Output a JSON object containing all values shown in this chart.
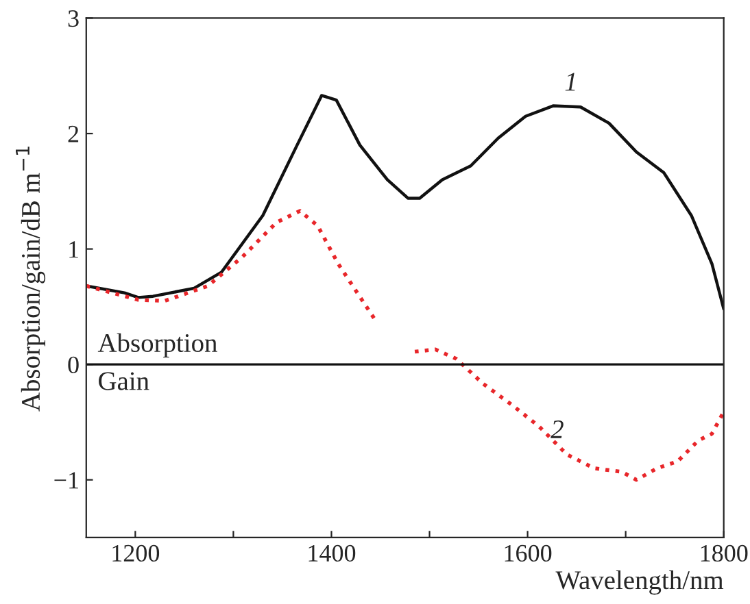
{
  "chart_data": {
    "type": "line",
    "xlabel": "Wavelength/nm",
    "ylabel": "Absorption/gain/dB m$^{−1}$",
    "xlim": [
      1150,
      1800
    ],
    "ylim": [
      -1.5,
      3
    ],
    "xticks": [
      {
        "value": 1200,
        "label": "1200"
      },
      {
        "value": 1300,
        "label": null
      },
      {
        "value": 1400,
        "label": "1400"
      },
      {
        "value": 1500,
        "label": null
      },
      {
        "value": 1600,
        "label": "1600"
      },
      {
        "value": 1700,
        "label": null
      },
      {
        "value": 1800,
        "label": "1800"
      }
    ],
    "yticks": [
      {
        "value": -1,
        "label": "−1"
      },
      0,
      1,
      2,
      3
    ],
    "grid": false,
    "legend": false,
    "series": [
      {
        "color": "#111111",
        "line_style": "solid",
        "x": [
          1150,
          1189,
          1203,
          1218,
          1260,
          1288,
          1330,
          1365,
          1390,
          1405,
          1429,
          1457,
          1478,
          1490,
          1513,
          1542,
          1570,
          1598,
          1626,
          1654,
          1683,
          1711,
          1739,
          1767,
          1788,
          1800
        ],
        "values": [
          0.68,
          0.62,
          0.58,
          0.59,
          0.66,
          0.8,
          1.29,
          1.9,
          2.33,
          2.29,
          1.9,
          1.6,
          1.44,
          1.44,
          1.6,
          1.72,
          1.96,
          2.15,
          2.24,
          2.23,
          2.09,
          1.84,
          1.66,
          1.29,
          0.87,
          0.48
        ]
      },
      {
        "color": "#e8262a",
        "line_style": "dotted",
        "x": [
          1150,
          1203,
          1230,
          1274,
          1309,
          1344,
          1368,
          1386,
          1407,
          1431,
          1445,
          1465,
          1485,
          1506,
          1527,
          1555,
          1584,
          1612,
          1640,
          1668,
          1696,
          1711,
          1732,
          1753,
          1774,
          1788,
          1800
        ],
        "values": [
          0.68,
          0.56,
          0.55,
          0.68,
          0.93,
          1.23,
          1.33,
          1.2,
          0.87,
          0.56,
          0.38,
          null,
          0.11,
          0.13,
          0.05,
          -0.17,
          -0.35,
          -0.54,
          -0.78,
          -0.9,
          -0.93,
          -1.0,
          -0.9,
          -0.84,
          -0.66,
          -0.6,
          -0.41
        ]
      }
    ],
    "ref_lines": [
      {
        "axis": "y",
        "value": 0,
        "color": "#111111",
        "line_style": "solid"
      }
    ],
    "annotations": [
      {
        "text": "1",
        "x": 1654,
        "y": 2.23
      },
      {
        "text": "2",
        "x": 1640,
        "y": -0.78
      },
      "Absorption",
      "Gain"
    ]
  }
}
